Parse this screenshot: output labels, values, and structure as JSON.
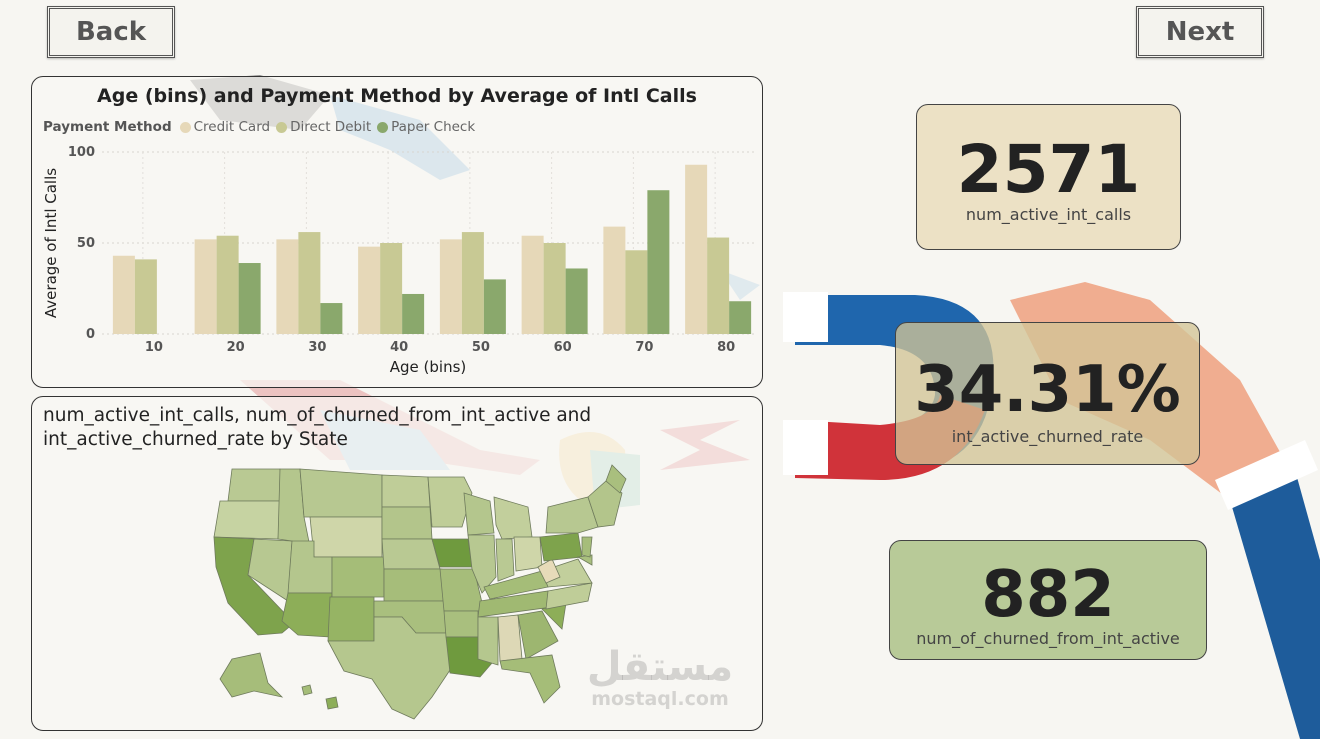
{
  "nav": {
    "back_label": "Back",
    "next_label": "Next"
  },
  "bar_chart": {
    "title": "Age (bins) and Payment Method by Average of Intl Calls",
    "legend_title": "Payment Method",
    "colors": {
      "credit_card": "#e6d8b8",
      "direct_debit": "#c8c994",
      "paper_check": "#8aa86c"
    }
  },
  "chart_data": {
    "type": "bar",
    "title": "Age (bins) and Payment Method by Average of Intl Calls",
    "xlabel": "Age (bins)",
    "ylabel": "Average of Intl Calls",
    "categories": [
      "10",
      "20",
      "30",
      "40",
      "50",
      "60",
      "70",
      "80"
    ],
    "ylim": [
      0,
      100
    ],
    "yticks": [
      "0",
      "50",
      "100"
    ],
    "grid": true,
    "legend_placement": "top-left",
    "series": [
      {
        "name": "Credit Card",
        "values": [
          43,
          52,
          52,
          48,
          52,
          54,
          59,
          93
        ]
      },
      {
        "name": "Direct Debit",
        "values": [
          41,
          54,
          56,
          50,
          56,
          50,
          46,
          53
        ]
      },
      {
        "name": "Paper Check",
        "values": [
          null,
          39,
          17,
          22,
          30,
          36,
          79,
          18
        ]
      }
    ]
  },
  "map": {
    "title": "num_active_int_calls, num_of_churned_from_int_active and int_active_churned_rate by State"
  },
  "kpis": {
    "active_calls": {
      "value": "2571",
      "label": "num_active_int_calls"
    },
    "churn_rate": {
      "value": "34.31%",
      "label": "int_active_churned_rate"
    },
    "churned": {
      "value": "882",
      "label": "num_of_churned_from_int_active"
    }
  },
  "watermark": {
    "arabic": "مستقل",
    "latin": "mostaql.com"
  }
}
